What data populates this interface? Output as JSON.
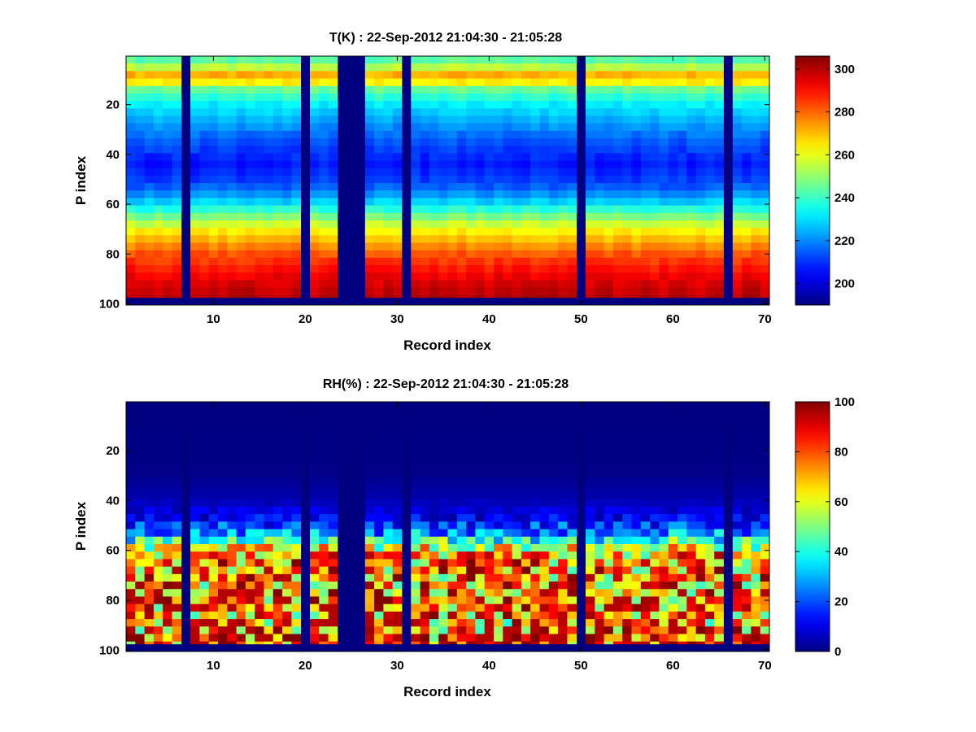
{
  "chart_data": [
    {
      "type": "heatmap",
      "title": "T(K) : 22-Sep-2012 21:04:30 - 21:05:28",
      "xlabel": "Record index",
      "ylabel": "P index",
      "xlim": [
        0.5,
        70.5
      ],
      "ylim": [
        0.5,
        100.5
      ],
      "y_reversed": true,
      "x_ticks": [
        10,
        20,
        30,
        40,
        50,
        60,
        70
      ],
      "y_ticks": [
        20,
        40,
        60,
        80,
        100
      ],
      "colormap": "jet",
      "colorbar": {
        "limits": [
          190,
          306
        ],
        "ticks": [
          200,
          220,
          240,
          260,
          280,
          300
        ]
      },
      "missing_records": [
        7,
        20,
        24,
        25,
        26,
        31,
        50,
        66
      ],
      "bottom_rows_filled_from": 98,
      "profile": {
        "p_index": [
          1,
          3,
          6,
          9,
          14,
          20,
          28,
          36,
          44,
          52,
          58,
          64,
          70,
          76,
          80,
          85,
          90,
          95,
          98
        ],
        "temperature_K": [
          248,
          240,
          262,
          276,
          245,
          232,
          222,
          213,
          207,
          213,
          225,
          244,
          262,
          274,
          282,
          288,
          294,
          298,
          300
        ]
      }
    },
    {
      "type": "heatmap",
      "title": "RH(%) : 22-Sep-2012 21:04:30 - 21:05:28",
      "xlabel": "Record index",
      "ylabel": "P index",
      "xlim": [
        0.5,
        70.5
      ],
      "ylim": [
        0.5,
        100.5
      ],
      "y_reversed": true,
      "x_ticks": [
        10,
        20,
        30,
        40,
        50,
        60,
        70
      ],
      "y_ticks": [
        20,
        40,
        60,
        80,
        100
      ],
      "colormap": "jet",
      "colorbar": {
        "limits": [
          0,
          100
        ],
        "ticks": [
          0,
          20,
          40,
          60,
          80,
          100
        ]
      },
      "missing_records": [
        7,
        20,
        24,
        25,
        26,
        31,
        50,
        66
      ],
      "bottom_rows_filled_from": 98,
      "profile": {
        "p_index": [
          1,
          30,
          40,
          48,
          54,
          58,
          62,
          66,
          72,
          80,
          90,
          97
        ],
        "relative_humidity_pct": [
          0,
          1,
          5,
          12,
          30,
          55,
          70,
          74,
          72,
          75,
          70,
          80
        ]
      }
    }
  ]
}
